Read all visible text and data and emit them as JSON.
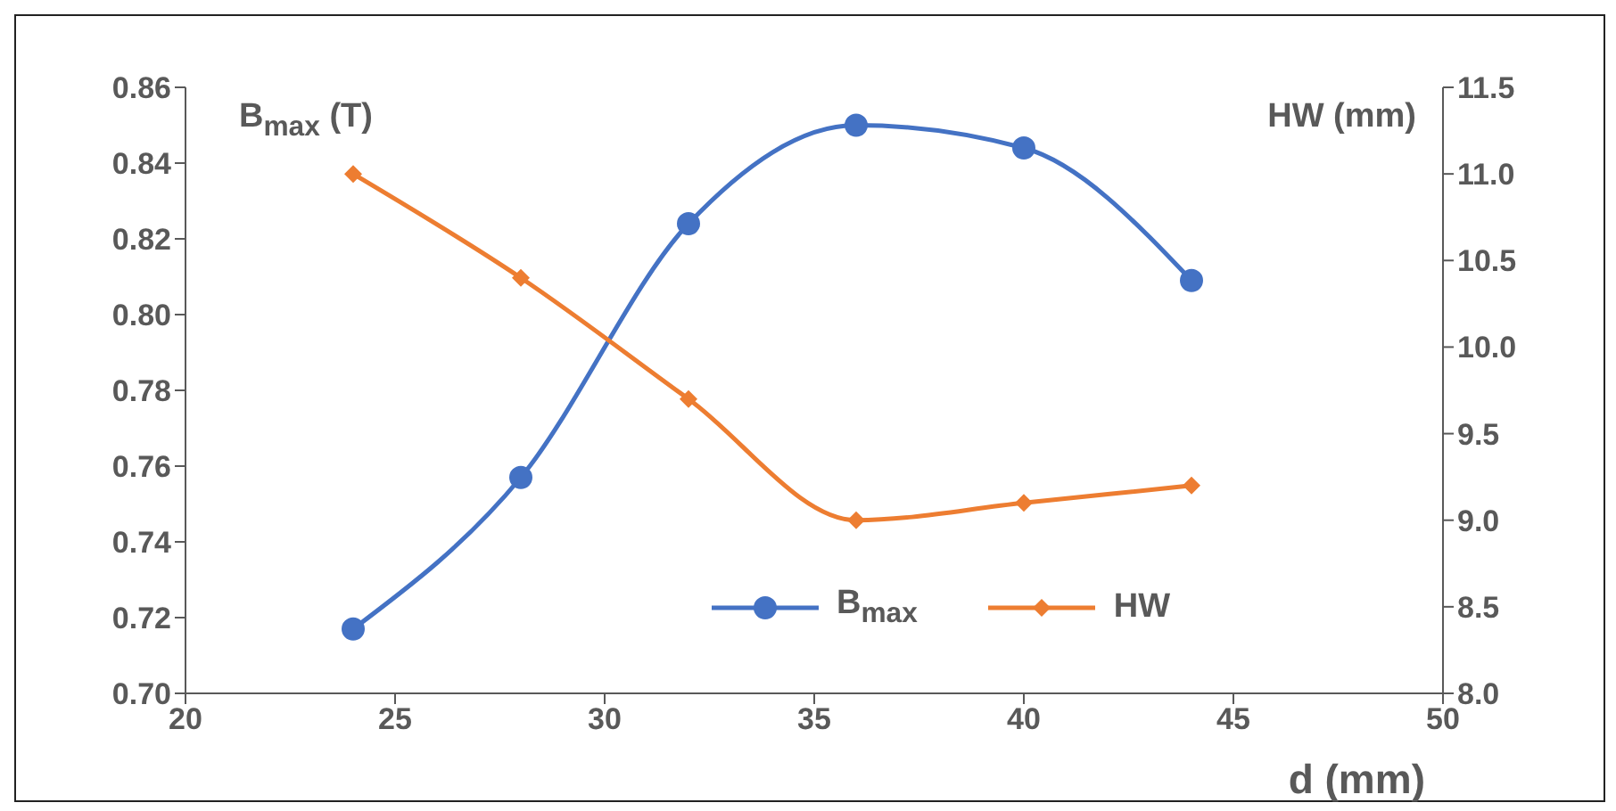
{
  "chart_data": {
    "type": "line",
    "xlabel": "d (mm)",
    "ylabel": "B$_{max}$ (T)",
    "y2label": "HW (mm)",
    "x": [
      24,
      28,
      32,
      36,
      40,
      44
    ],
    "series": [
      {
        "name": "B$_{max}$",
        "color": "#4472c4",
        "marker": "circle",
        "values": [
          0.717,
          0.757,
          0.824,
          0.85,
          0.844,
          0.809
        ]
      },
      {
        "name": "HW",
        "color": "#ed7d31",
        "marker": "diamond",
        "axis": "y2",
        "values": [
          11.0,
          10.4,
          9.7,
          9.0,
          9.1,
          9.2
        ]
      }
    ],
    "xlim": [
      20,
      50
    ],
    "xticks": [
      20,
      25,
      30,
      35,
      40,
      45,
      50
    ],
    "ylim": [
      0.7,
      0.86
    ],
    "yticks": [
      {
        "value": 0.7,
        "label": "0.70"
      },
      {
        "value": 0.72,
        "label": "0.72"
      },
      {
        "value": 0.74,
        "label": "0.74"
      },
      {
        "value": 0.76,
        "label": "0.76"
      },
      {
        "value": 0.78,
        "label": "0.78"
      },
      {
        "value": 0.8,
        "label": "0.80"
      },
      {
        "value": 0.82,
        "label": "0.82"
      },
      {
        "value": 0.84,
        "label": "0.84"
      },
      {
        "value": 0.86,
        "label": "0.86"
      }
    ],
    "y2lim": [
      8.0,
      11.5
    ],
    "y2ticks": [
      {
        "value": 8,
        "label": "8.0"
      },
      {
        "value": 8.5,
        "label": "8.5"
      },
      {
        "value": 9,
        "label": "9.0"
      },
      {
        "value": 9.5,
        "label": "9.5"
      },
      {
        "value": 10,
        "label": "10.0"
      },
      {
        "value": 10.5,
        "label": "10.5"
      },
      {
        "value": 11,
        "label": "11.0"
      },
      {
        "value": 11.5,
        "label": "11.5"
      }
    ],
    "grid": false,
    "legend": "bottom"
  }
}
